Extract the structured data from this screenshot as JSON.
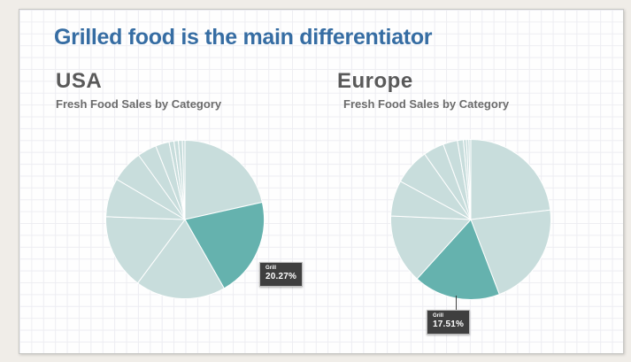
{
  "slide": {
    "title": "Grilled food is the main differentiator"
  },
  "colors": {
    "background_frame": "#f0ede8",
    "canvas": "#fefefe",
    "grid_line": "#ededf2",
    "title_blue": "#366da3",
    "heading_gray": "#595959",
    "subtitle_gray": "#6b6b6b",
    "pie_base": "#c8dddc",
    "pie_highlight": "#65b2ae",
    "tooltip_bg": "#3f3f3f",
    "tooltip_text": "#ffffff"
  },
  "chart_data": [
    {
      "type": "pie",
      "title": "USA",
      "subtitle": "Fresh Food Sales by Category",
      "unit": "%",
      "start_angle_deg": 0,
      "direction": "clockwise",
      "legend": "none",
      "colors": {
        "base": "#c8dddc",
        "highlight": "#65b2ae",
        "separator": "#ffffff"
      },
      "slices": [
        {
          "label": "",
          "value": 21.5
        },
        {
          "label": "Grill",
          "value": 20.27,
          "highlight": true
        },
        {
          "label": "",
          "value": 18.4
        },
        {
          "label": "",
          "value": 15.4
        },
        {
          "label": "",
          "value": 7.9
        },
        {
          "label": "",
          "value": 6.6
        },
        {
          "label": "",
          "value": 3.9
        },
        {
          "label": "",
          "value": 2.8
        },
        {
          "label": "",
          "value": 1.0
        },
        {
          "label": "",
          "value": 0.9
        },
        {
          "label": "",
          "value": 0.8
        },
        {
          "label": "",
          "value": 0.53
        }
      ],
      "tooltip": {
        "label": "Grill",
        "value": "20.27%"
      }
    },
    {
      "type": "pie",
      "title": "Europe",
      "subtitle": "Fresh Food Sales by Category",
      "unit": "%",
      "start_angle_deg": 0,
      "direction": "clockwise",
      "legend": "none",
      "colors": {
        "base": "#c8dddc",
        "highlight": "#65b2ae",
        "separator": "#ffffff"
      },
      "slices": [
        {
          "label": "",
          "value": 23.1
        },
        {
          "label": "",
          "value": 21.1
        },
        {
          "label": "Grill",
          "value": 17.51,
          "highlight": true
        },
        {
          "label": "",
          "value": 14.0
        },
        {
          "label": "",
          "value": 7.2
        },
        {
          "label": "",
          "value": 7.3
        },
        {
          "label": "",
          "value": 4.2
        },
        {
          "label": "",
          "value": 2.9
        },
        {
          "label": "",
          "value": 1.2
        },
        {
          "label": "",
          "value": 0.6
        },
        {
          "label": "",
          "value": 0.5
        },
        {
          "label": "",
          "value": 0.39
        }
      ],
      "tooltip": {
        "label": "Grill",
        "value": "17.51%"
      }
    }
  ]
}
